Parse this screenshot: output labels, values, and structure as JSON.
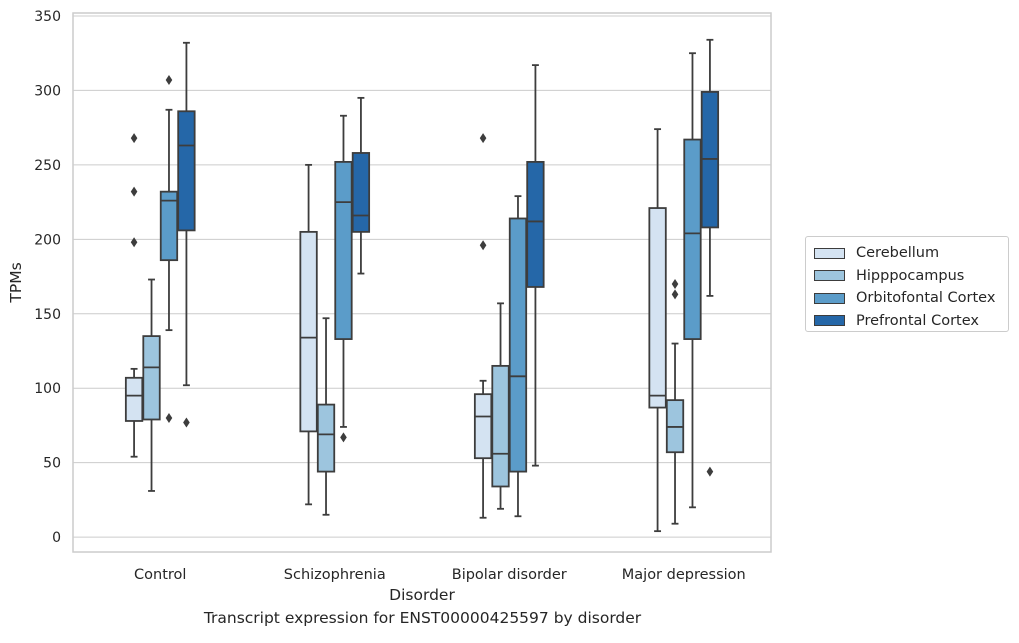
{
  "caption": "Transcript expression for ENST00000425597 by disorder",
  "chart_data": {
    "type": "box",
    "xlabel": "Disorder",
    "ylabel": "TPMs",
    "ylim": [
      -10,
      352
    ],
    "yticks": [
      0,
      50,
      100,
      150,
      200,
      250,
      300,
      350
    ],
    "grid": "horizontal",
    "legend_placement": "outside-right",
    "categories": [
      "Control",
      "Schizophrenia",
      "Bipolar disorder",
      "Major depression"
    ],
    "series": [
      {
        "name": "Cerebellum",
        "color": "#d4e3f2",
        "boxes": [
          {
            "q1": 78,
            "median": 95,
            "q3": 107,
            "whisker_low": 54,
            "whisker_high": 113,
            "outliers": [
              198,
              232,
              268
            ]
          },
          {
            "q1": 71,
            "median": 134,
            "q3": 205,
            "whisker_low": 22,
            "whisker_high": 250,
            "outliers": []
          },
          {
            "q1": 53,
            "median": 81,
            "q3": 96,
            "whisker_low": 13,
            "whisker_high": 105,
            "outliers": [
              196,
              268
            ]
          },
          {
            "q1": 87,
            "median": 95,
            "q3": 221,
            "whisker_low": 4,
            "whisker_high": 274,
            "outliers": []
          }
        ]
      },
      {
        "name": "Hipppocampus",
        "color": "#9dc5de",
        "boxes": [
          {
            "q1": 79,
            "median": 114,
            "q3": 135,
            "whisker_low": 31,
            "whisker_high": 173,
            "outliers": []
          },
          {
            "q1": 44,
            "median": 69,
            "q3": 89,
            "whisker_low": 15,
            "whisker_high": 147,
            "outliers": []
          },
          {
            "q1": 34,
            "median": 56,
            "q3": 115,
            "whisker_low": 19,
            "whisker_high": 157,
            "outliers": []
          },
          {
            "q1": 57,
            "median": 74,
            "q3": 92,
            "whisker_low": 9,
            "whisker_high": 130,
            "outliers": [
              163,
              170
            ]
          }
        ]
      },
      {
        "name": "Orbitofontal Cortex",
        "color": "#5b9cc9",
        "boxes": [
          {
            "q1": 186,
            "median": 226,
            "q3": 232,
            "whisker_low": 139,
            "whisker_high": 287,
            "outliers": [
              80,
              307
            ]
          },
          {
            "q1": 133,
            "median": 225,
            "q3": 252,
            "whisker_low": 74,
            "whisker_high": 283,
            "outliers": [
              67
            ]
          },
          {
            "q1": 44,
            "median": 108,
            "q3": 214,
            "whisker_low": 14,
            "whisker_high": 229,
            "outliers": []
          },
          {
            "q1": 133,
            "median": 204,
            "q3": 267,
            "whisker_low": 20,
            "whisker_high": 325,
            "outliers": []
          }
        ]
      },
      {
        "name": "Prefrontal Cortex",
        "color": "#2567a8",
        "boxes": [
          {
            "q1": 206,
            "median": 263,
            "q3": 286,
            "whisker_low": 102,
            "whisker_high": 332,
            "outliers": [
              77
            ]
          },
          {
            "q1": 205,
            "median": 216,
            "q3": 258,
            "whisker_low": 177,
            "whisker_high": 295,
            "outliers": []
          },
          {
            "q1": 168,
            "median": 212,
            "q3": 252,
            "whisker_low": 48,
            "whisker_high": 317,
            "outliers": []
          },
          {
            "q1": 208,
            "median": 254,
            "q3": 299,
            "whisker_low": 162,
            "whisker_high": 334,
            "outliers": [
              44
            ]
          }
        ]
      }
    ]
  }
}
